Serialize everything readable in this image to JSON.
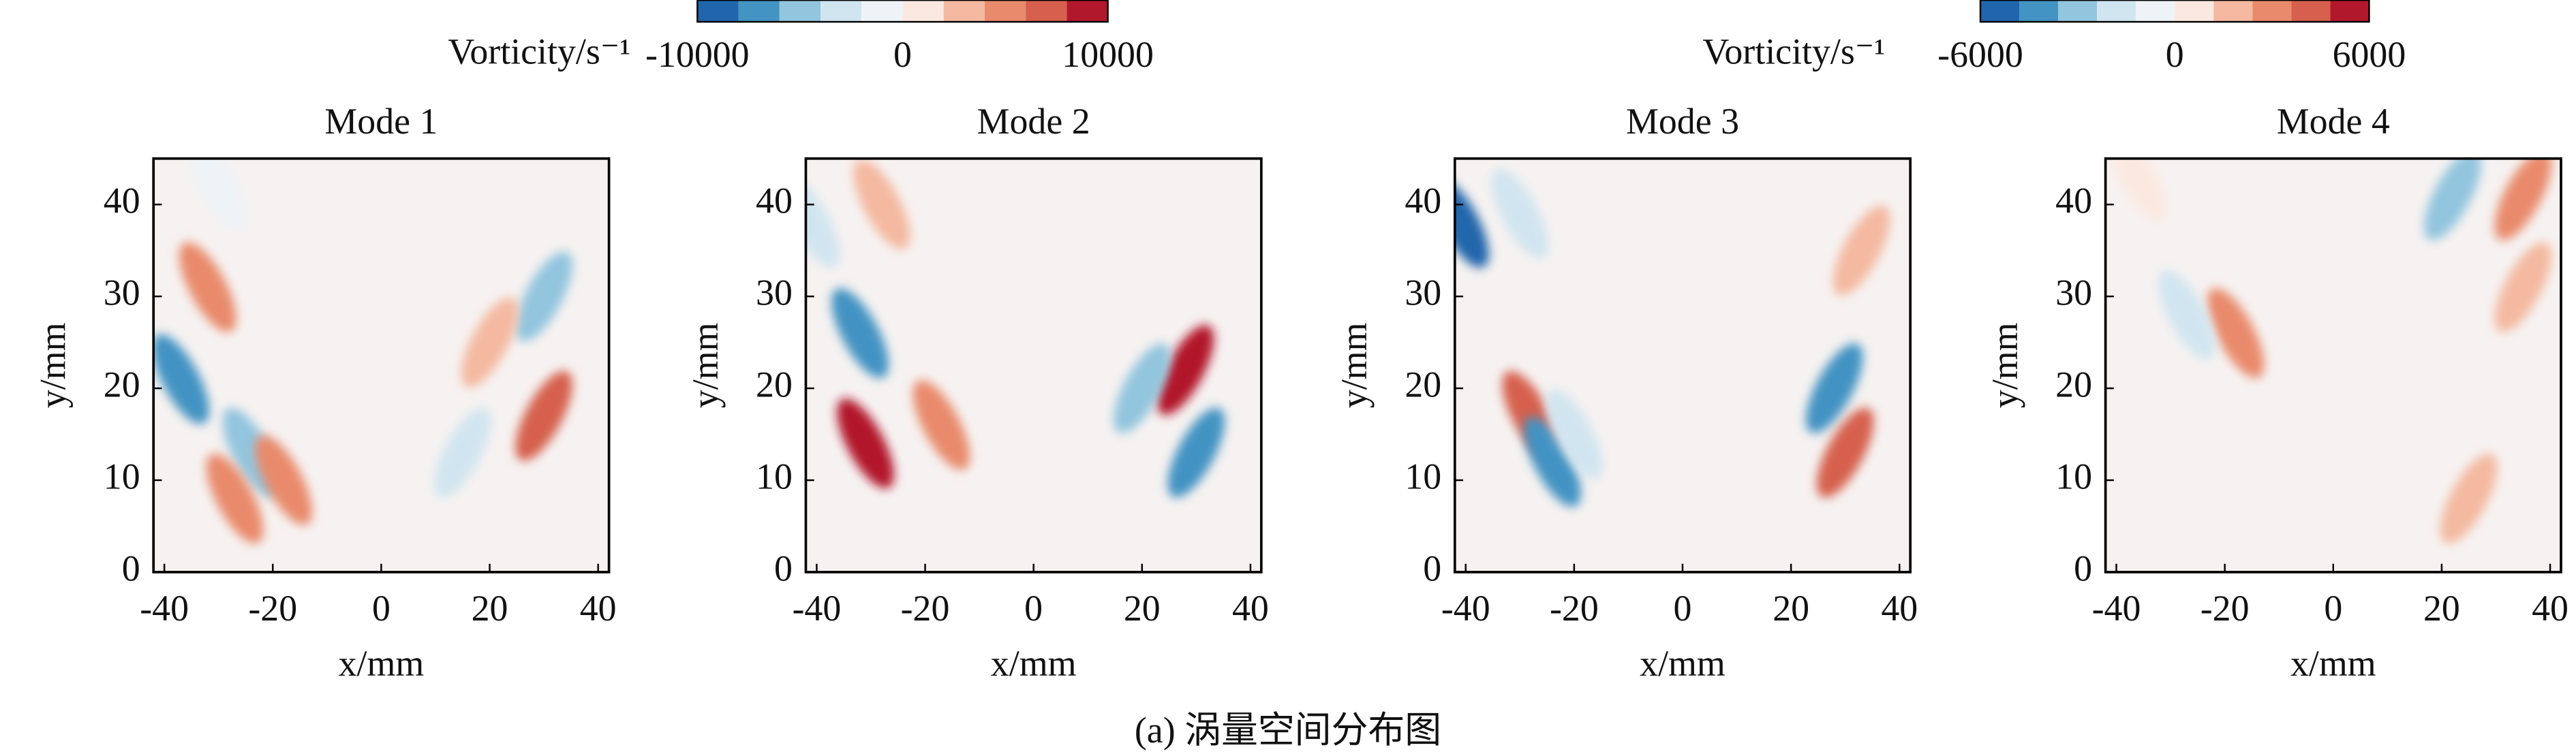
{
  "chart_data": [
    {
      "type": "contour",
      "title": "Mode 1",
      "xlabel": "x/mm",
      "ylabel": "y/mm",
      "xlim": [
        -42,
        42
      ],
      "ylim": [
        0,
        45
      ],
      "xticks": [
        -40,
        -20,
        0,
        20,
        40
      ],
      "yticks": [
        0,
        10,
        20,
        30,
        40
      ],
      "colorbar": {
        "label": "Vorticity/s⁻¹",
        "lim": [
          -10000,
          10000
        ],
        "ticks": [
          -10000,
          0,
          10000
        ],
        "colors": [
          "#2166ac",
          "#4393c3",
          "#92c5de",
          "#d1e5f0",
          "#eef3f7",
          "#fbe9e1",
          "#f4b9a0",
          "#e98a6c",
          "#d6604d",
          "#b2182b"
        ]
      },
      "vortices": [
        {
          "x": -32,
          "y": 31,
          "value": 5000
        },
        {
          "x": -37,
          "y": 21,
          "value": -7000
        },
        {
          "x": -24,
          "y": 13,
          "value": -5000
        },
        {
          "x": -27,
          "y": 8,
          "value": 4000
        },
        {
          "x": -18,
          "y": 10,
          "value": 5000
        },
        {
          "x": 30,
          "y": 30,
          "value": -6000
        },
        {
          "x": 20,
          "y": 25,
          "value": 3000
        },
        {
          "x": 30,
          "y": 17,
          "value": 7000
        },
        {
          "x": 15,
          "y": 13,
          "value": -4000
        },
        {
          "x": -30,
          "y": 42,
          "value": -2000
        }
      ]
    },
    {
      "type": "contour",
      "title": "Mode 2",
      "xlabel": "x/mm",
      "ylabel": "y/mm",
      "xlim": [
        -42,
        42
      ],
      "ylim": [
        0,
        45
      ],
      "xticks": [
        -40,
        -20,
        0,
        20,
        40
      ],
      "yticks": [
        0,
        10,
        20,
        30,
        40
      ],
      "vortices": [
        {
          "x": -32,
          "y": 26,
          "value": -8000
        },
        {
          "x": -31,
          "y": 14,
          "value": 9000
        },
        {
          "x": -17,
          "y": 16,
          "value": 4000
        },
        {
          "x": -41,
          "y": 38,
          "value": -4000
        },
        {
          "x": -28,
          "y": 40,
          "value": 2000
        },
        {
          "x": 28,
          "y": 22,
          "value": 9000
        },
        {
          "x": 20,
          "y": 20,
          "value": -5000
        },
        {
          "x": 30,
          "y": 13,
          "value": -7000
        }
      ]
    },
    {
      "type": "contour",
      "title": "Mode 3",
      "xlabel": "x/mm",
      "ylabel": "y/mm",
      "xlim": [
        -42,
        42
      ],
      "ylim": [
        0,
        45
      ],
      "xticks": [
        -40,
        -20,
        0,
        20,
        40
      ],
      "yticks": [
        0,
        10,
        20,
        30,
        40
      ],
      "colorbar": {
        "label": "Vorticity/s⁻¹",
        "lim": [
          -6000,
          6000
        ],
        "ticks": [
          -6000,
          0,
          6000
        ],
        "colors": [
          "#2166ac",
          "#4393c3",
          "#92c5de",
          "#d1e5f0",
          "#eef3f7",
          "#fbe9e1",
          "#f4b9a0",
          "#e98a6c",
          "#d6604d",
          "#b2182b"
        ]
      },
      "vortices": [
        {
          "x": -41,
          "y": 38,
          "value": -6000
        },
        {
          "x": -28,
          "y": 17,
          "value": 4000
        },
        {
          "x": -24,
          "y": 12,
          "value": -4000
        },
        {
          "x": -30,
          "y": 39,
          "value": -1500
        },
        {
          "x": 28,
          "y": 20,
          "value": -4000
        },
        {
          "x": 30,
          "y": 13,
          "value": 4500
        },
        {
          "x": 33,
          "y": 35,
          "value": 2000
        },
        {
          "x": -20,
          "y": 15,
          "value": -1500
        }
      ]
    },
    {
      "type": "contour",
      "title": "Mode 4",
      "xlabel": "x/mm",
      "ylabel": "y/mm",
      "xlim": [
        -42,
        42
      ],
      "ylim": [
        0,
        45
      ],
      "xticks": [
        -40,
        -20,
        0,
        20,
        40
      ],
      "yticks": [
        0,
        10,
        20,
        30,
        40
      ],
      "vortices": [
        {
          "x": -18,
          "y": 26,
          "value": 3500
        },
        {
          "x": -27,
          "y": 28,
          "value": -1500
        },
        {
          "x": 22,
          "y": 41,
          "value": -2500
        },
        {
          "x": 35,
          "y": 41,
          "value": 3500
        },
        {
          "x": 35,
          "y": 31,
          "value": 1500
        },
        {
          "x": 25,
          "y": 8,
          "value": 1500
        },
        {
          "x": -36,
          "y": 43,
          "value": 1000
        }
      ]
    }
  ],
  "caption": "(a) 涡量空间分布图"
}
